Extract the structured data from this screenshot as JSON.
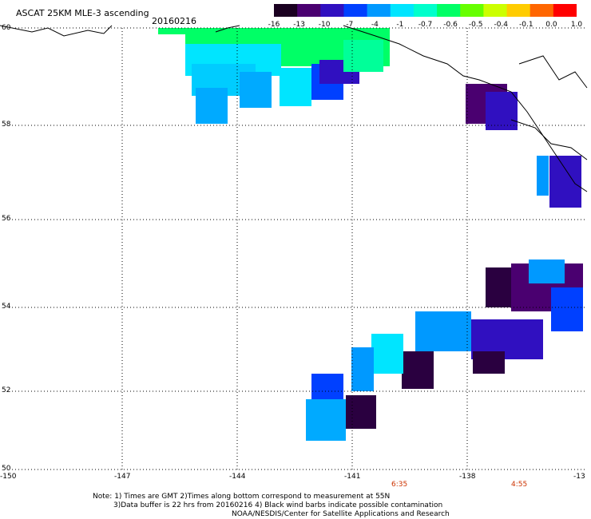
{
  "header": {
    "title": "ASCAT 25KM MLE-3 ascending",
    "date": "20160216"
  },
  "colorbar": {
    "labels": [
      "-16",
      "-13",
      "-10",
      "-7",
      "-4",
      "-1",
      "-0.7",
      "-0.6",
      "-0.5",
      "-0.4",
      "-0.1",
      "0.0",
      "1.0"
    ],
    "colors": [
      "#1a0020",
      "#4a0070",
      "#3010c0",
      "#0040ff",
      "#0099ff",
      "#00e5ff",
      "#00ffcc",
      "#00ff66",
      "#66ff00",
      "#ccff00",
      "#ffcc00",
      "#ff6600",
      "#ff0000"
    ]
  },
  "map": {
    "lat_labels": [
      "60",
      "58",
      "56",
      "54",
      "52",
      "50"
    ],
    "lon_labels": [
      "-150",
      "-147",
      "-144",
      "-141",
      "-138",
      "-13"
    ],
    "pass_times": [
      "6:35",
      "4:55"
    ]
  },
  "notes": {
    "line1": "Note: 1) Times are GMT 2)Times along bottom correspond to measurement at 55N",
    "line2": "3)Data buffer is 22 hrs from 20160216 4) Black wind barbs indicate possible contamination",
    "line3": "NOAA/NESDIS/Center for Satellite Applications and Research"
  }
}
